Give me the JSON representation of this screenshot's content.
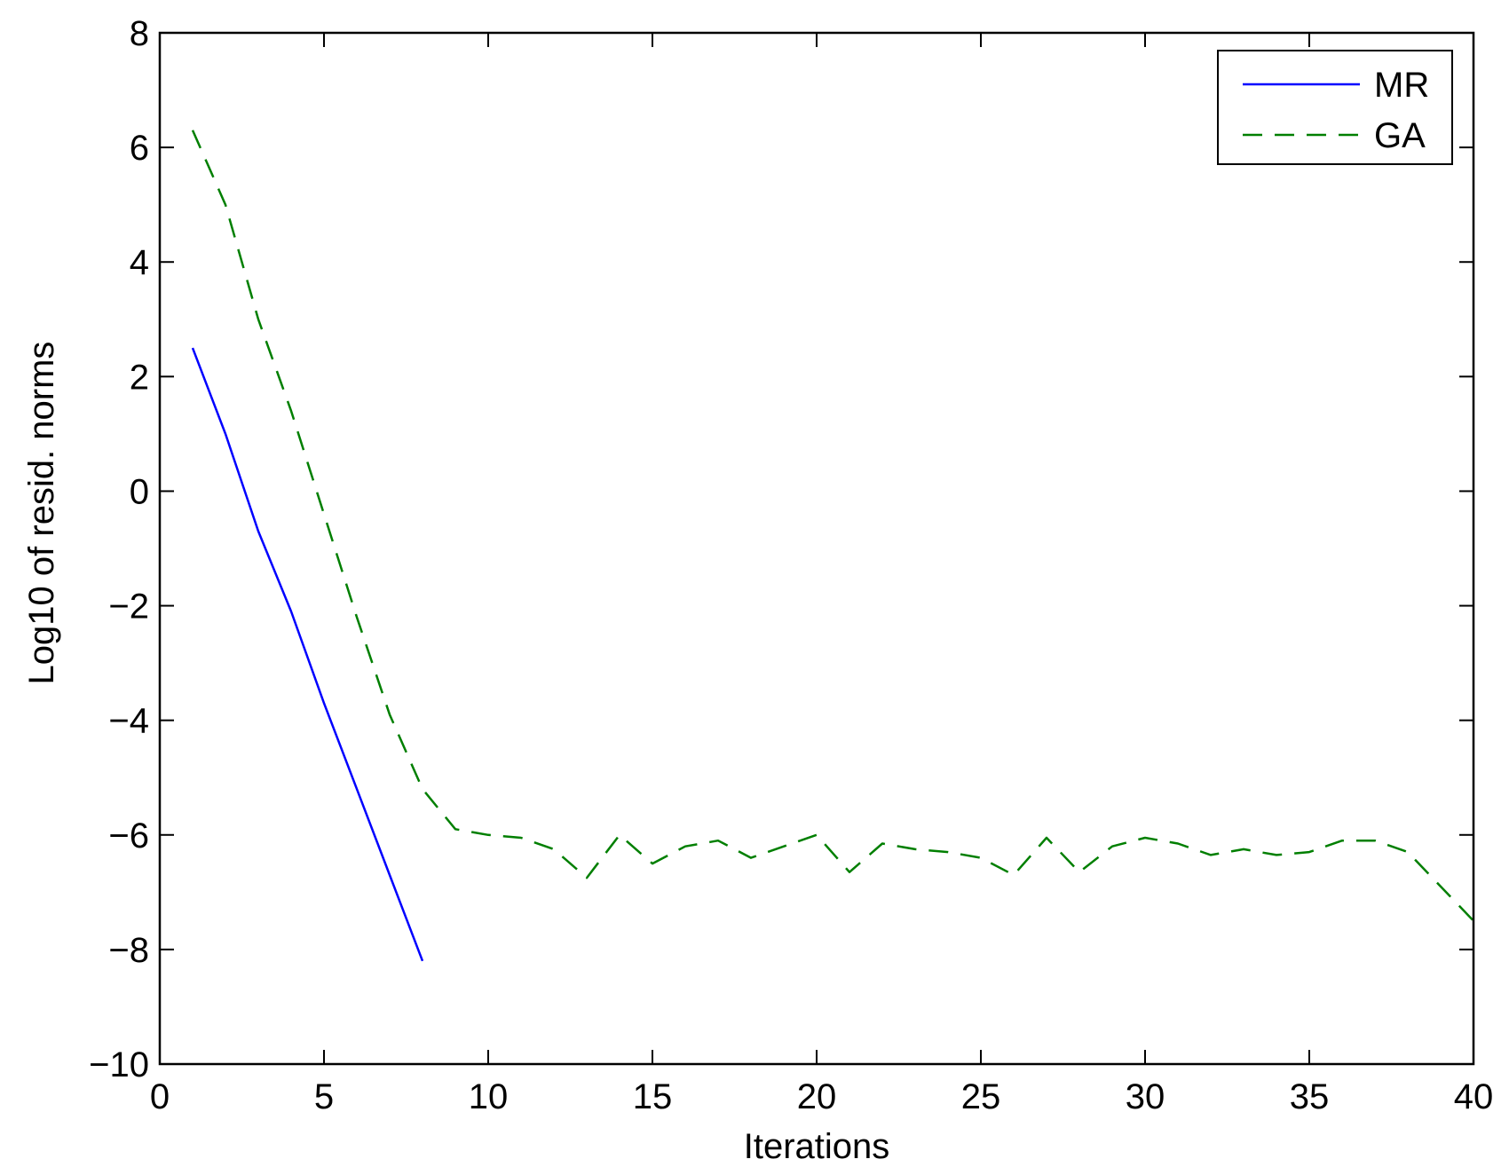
{
  "chart_data": {
    "type": "line",
    "title": "",
    "xlabel": "Iterations",
    "ylabel": "Log10 of resid. norms",
    "xlim": [
      0,
      40
    ],
    "ylim": [
      -10,
      8
    ],
    "xticks": [
      "0",
      "5",
      "10",
      "15",
      "20",
      "25",
      "30",
      "35",
      "40"
    ],
    "yticks": [
      "8",
      "6",
      "4",
      "2",
      "0",
      "−2",
      "−4",
      "−6",
      "−8",
      "−10"
    ],
    "grid": false,
    "legend_position": "top-right",
    "series": [
      {
        "name": "MR",
        "color": "#0000ff",
        "style": "solid",
        "x": [
          1,
          2,
          3,
          4,
          5,
          6,
          7,
          8
        ],
        "y": [
          2.5,
          1.0,
          -0.7,
          -2.1,
          -3.7,
          -5.2,
          -6.7,
          -8.2
        ]
      },
      {
        "name": "GA",
        "color": "#007f00",
        "style": "dashed",
        "x": [
          1,
          2,
          3,
          4,
          5,
          6,
          7,
          8,
          9,
          10,
          11,
          12,
          13,
          14,
          15,
          16,
          17,
          18,
          19,
          20,
          21,
          22,
          23,
          24,
          25,
          26,
          27,
          28,
          29,
          30,
          31,
          32,
          33,
          34,
          35,
          36,
          37,
          38,
          39,
          40
        ],
        "y": [
          6.3,
          5.0,
          3.0,
          1.4,
          -0.4,
          -2.2,
          -3.9,
          -5.2,
          -5.9,
          -6.0,
          -6.05,
          -6.25,
          -6.75,
          -6.0,
          -6.5,
          -6.2,
          -6.1,
          -6.4,
          -6.2,
          -6.0,
          -6.65,
          -6.15,
          -6.25,
          -6.3,
          -6.4,
          -6.7,
          -6.05,
          -6.65,
          -6.2,
          -6.05,
          -6.15,
          -6.35,
          -6.25,
          -6.35,
          -6.3,
          -6.1,
          -6.1,
          -6.3,
          -6.9,
          -7.5
        ]
      }
    ]
  }
}
